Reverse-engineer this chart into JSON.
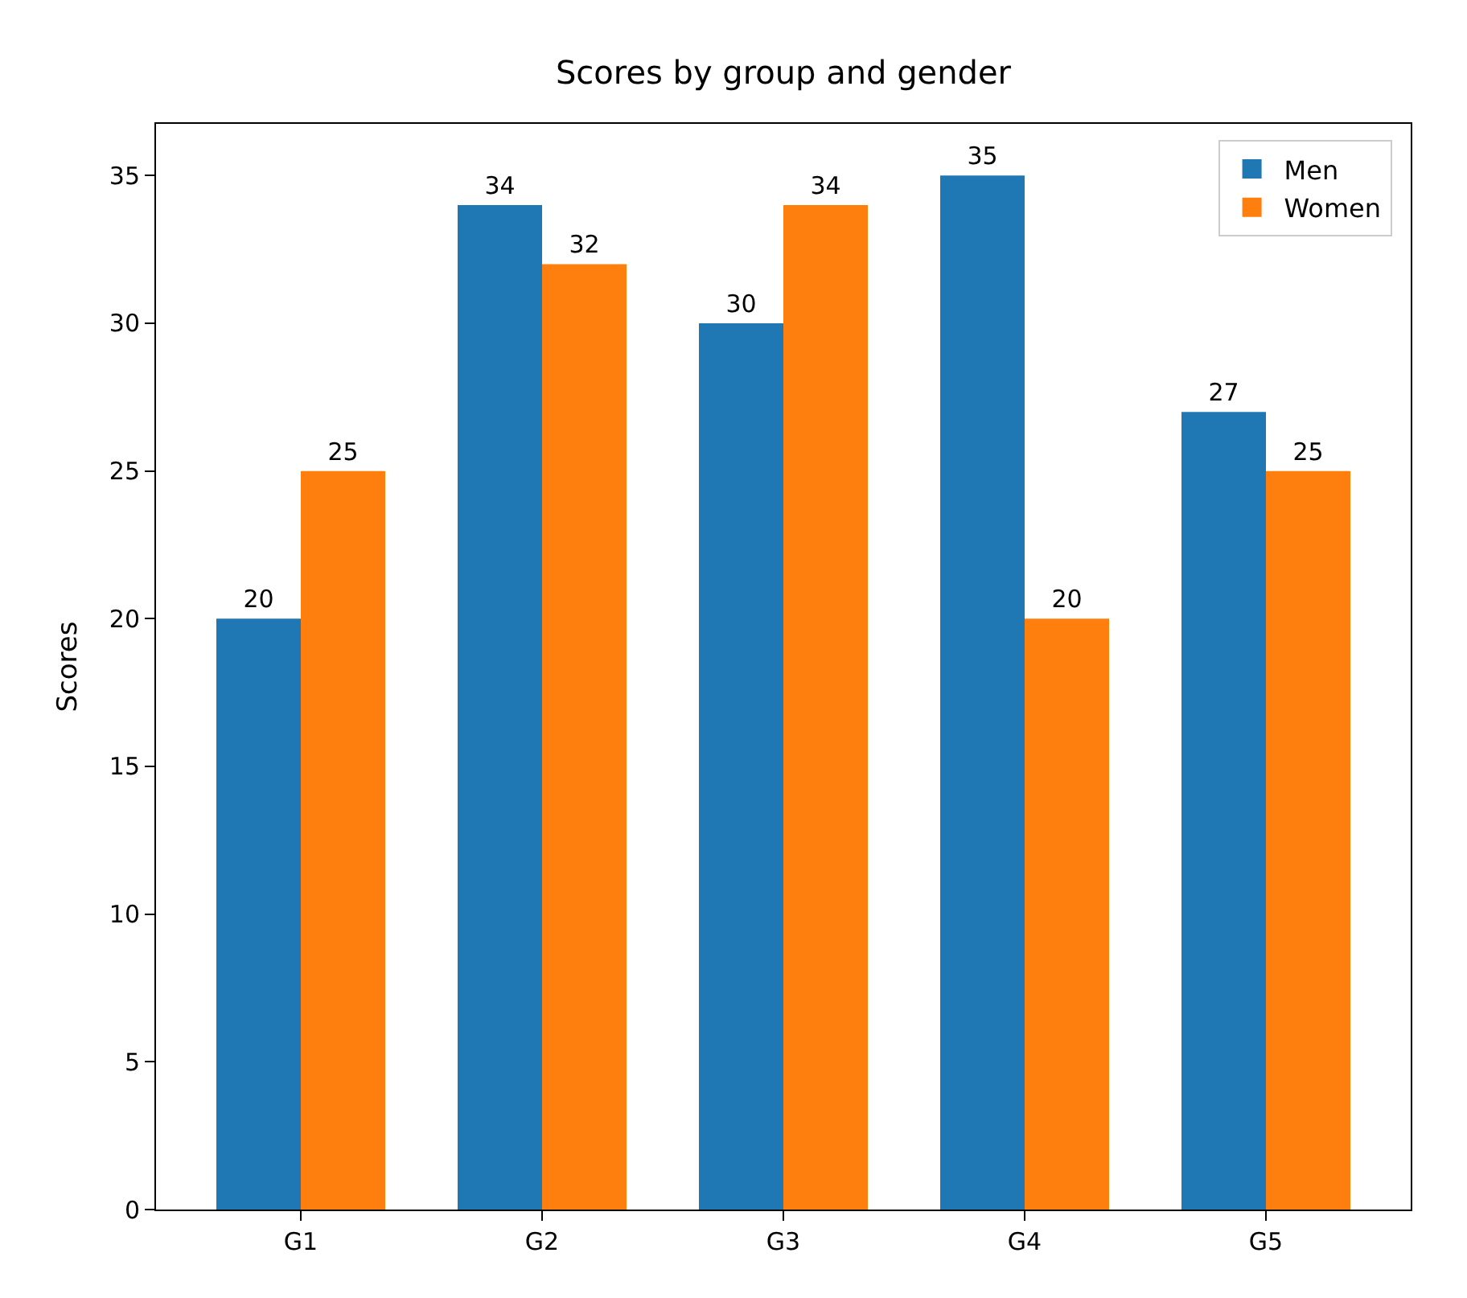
{
  "chart_data": {
    "type": "bar",
    "title": "Scores by group and gender",
    "ylabel": "Scores",
    "categories": [
      "G1",
      "G2",
      "G3",
      "G4",
      "G5"
    ],
    "series": [
      {
        "name": "Men",
        "color": "#1f77b4",
        "values": [
          20,
          34,
          30,
          35,
          27
        ]
      },
      {
        "name": "Women",
        "color": "#ff7f0e",
        "values": [
          25,
          32,
          34,
          20,
          25
        ]
      }
    ],
    "ylim": [
      0,
      36.75
    ],
    "yticks": [
      0,
      5,
      10,
      15,
      20,
      25,
      30,
      35
    ],
    "data_labels": true,
    "legend": "top right",
    "grid": false
  }
}
